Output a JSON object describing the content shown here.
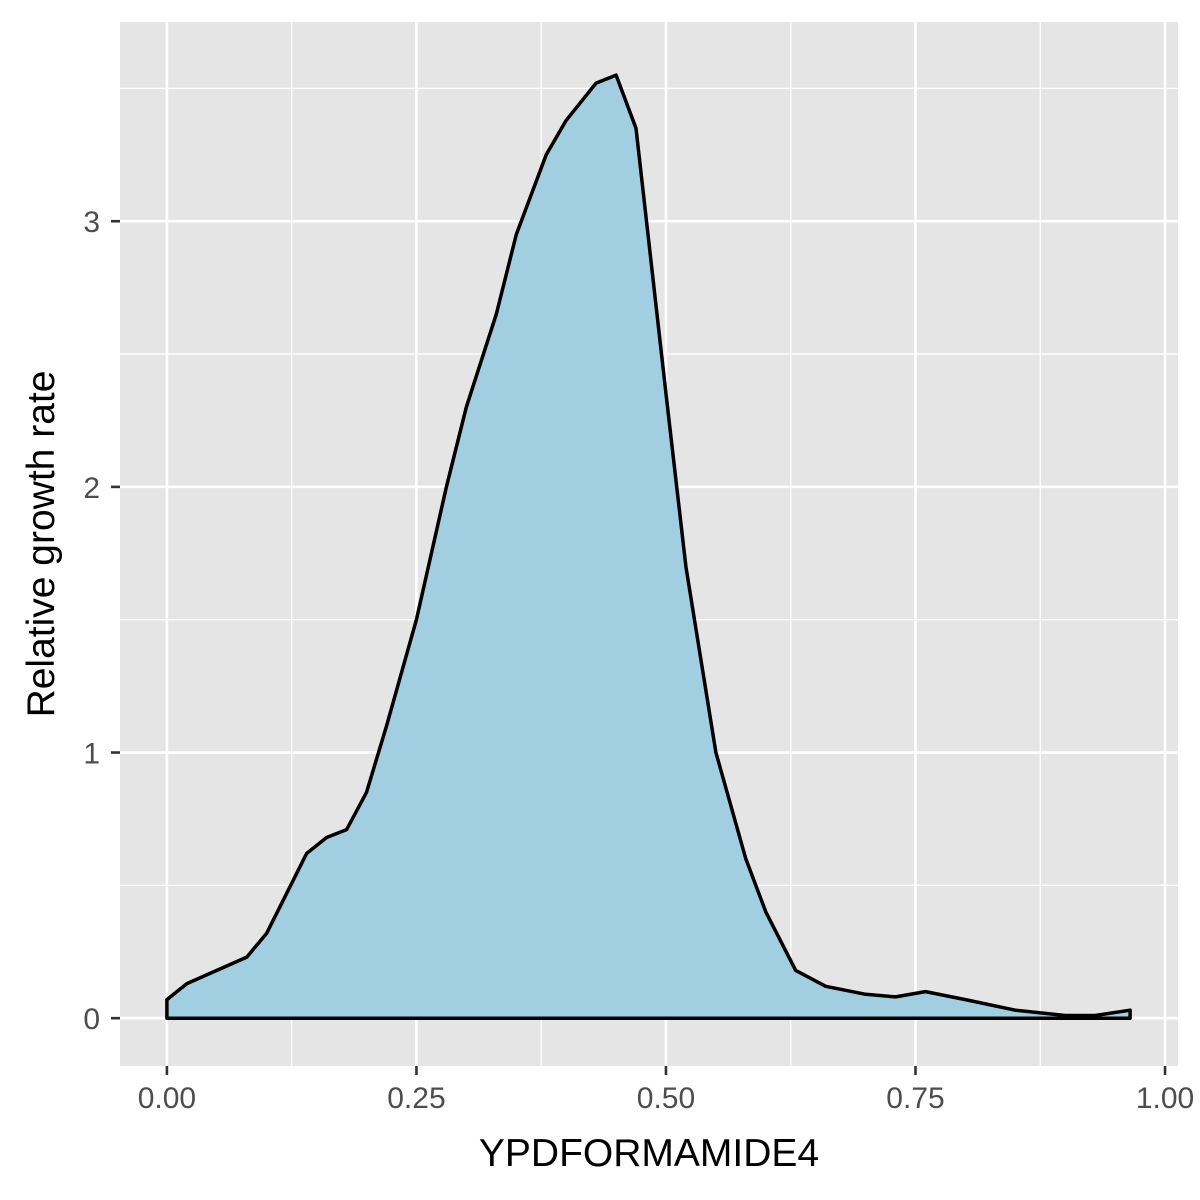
{
  "chart_data": {
    "type": "area",
    "title": "",
    "xlabel": "YPDFORMAMIDE4",
    "ylabel": "Relative growth rate",
    "xlim": [
      -0.047,
      1.013
    ],
    "ylim": [
      -0.18,
      3.75
    ],
    "x_ticks": [
      0.0,
      0.25,
      0.5,
      0.75,
      1.0
    ],
    "x_tick_labels": [
      "0.00",
      "0.25",
      "0.50",
      "0.75",
      "1.00"
    ],
    "y_ticks": [
      0,
      1,
      2,
      3
    ],
    "y_tick_labels": [
      "0",
      "1",
      "2",
      "3"
    ],
    "grid": true,
    "legend": "none",
    "fill_color": "#a1cfe1",
    "line_color": "#000000",
    "panel_color": "#e5e5e5",
    "series": [
      {
        "x": [
          0.0,
          0.02,
          0.05,
          0.08,
          0.1,
          0.12,
          0.14,
          0.16,
          0.18,
          0.2,
          0.22,
          0.25,
          0.28,
          0.3,
          0.33,
          0.35,
          0.38,
          0.4,
          0.43,
          0.45,
          0.47,
          0.5,
          0.52,
          0.55,
          0.58,
          0.6,
          0.63,
          0.66,
          0.7,
          0.73,
          0.76,
          0.8,
          0.85,
          0.9,
          0.93,
          0.965
        ],
        "y": [
          0.07,
          0.13,
          0.18,
          0.23,
          0.32,
          0.47,
          0.62,
          0.68,
          0.71,
          0.85,
          1.1,
          1.5,
          2.0,
          2.3,
          2.65,
          2.95,
          3.25,
          3.38,
          3.52,
          3.55,
          3.35,
          2.35,
          1.7,
          1.0,
          0.6,
          0.4,
          0.18,
          0.12,
          0.09,
          0.08,
          0.1,
          0.07,
          0.03,
          0.01,
          0.01,
          0.03
        ]
      }
    ]
  }
}
